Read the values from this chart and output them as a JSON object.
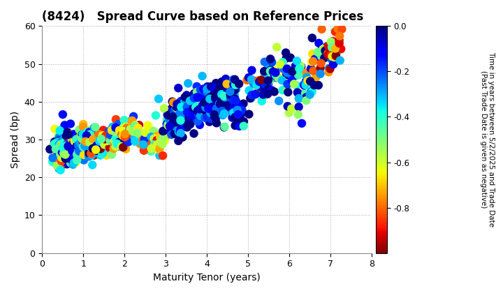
{
  "title": "(8424)   Spread Curve based on Reference Prices",
  "xlabel": "Maturity Tenor (years)",
  "ylabel": "Spread (bp)",
  "xlim": [
    0,
    8
  ],
  "ylim": [
    0,
    60
  ],
  "xticks": [
    0,
    1,
    2,
    3,
    4,
    5,
    6,
    7,
    8
  ],
  "yticks": [
    0,
    10,
    20,
    30,
    40,
    50,
    60
  ],
  "cbar_label": "Time in years between 5/2/2025 and Trade Date\n(Past Trade Date is given as negative)",
  "cbar_vmin": -1.0,
  "cbar_vmax": 0.0,
  "cbar_ticks": [
    0.0,
    -0.2,
    -0.4,
    -0.6,
    -0.8
  ],
  "grid_color": "#aaaaaa",
  "background_color": "#ffffff",
  "marker_size": 80,
  "seed": 42
}
